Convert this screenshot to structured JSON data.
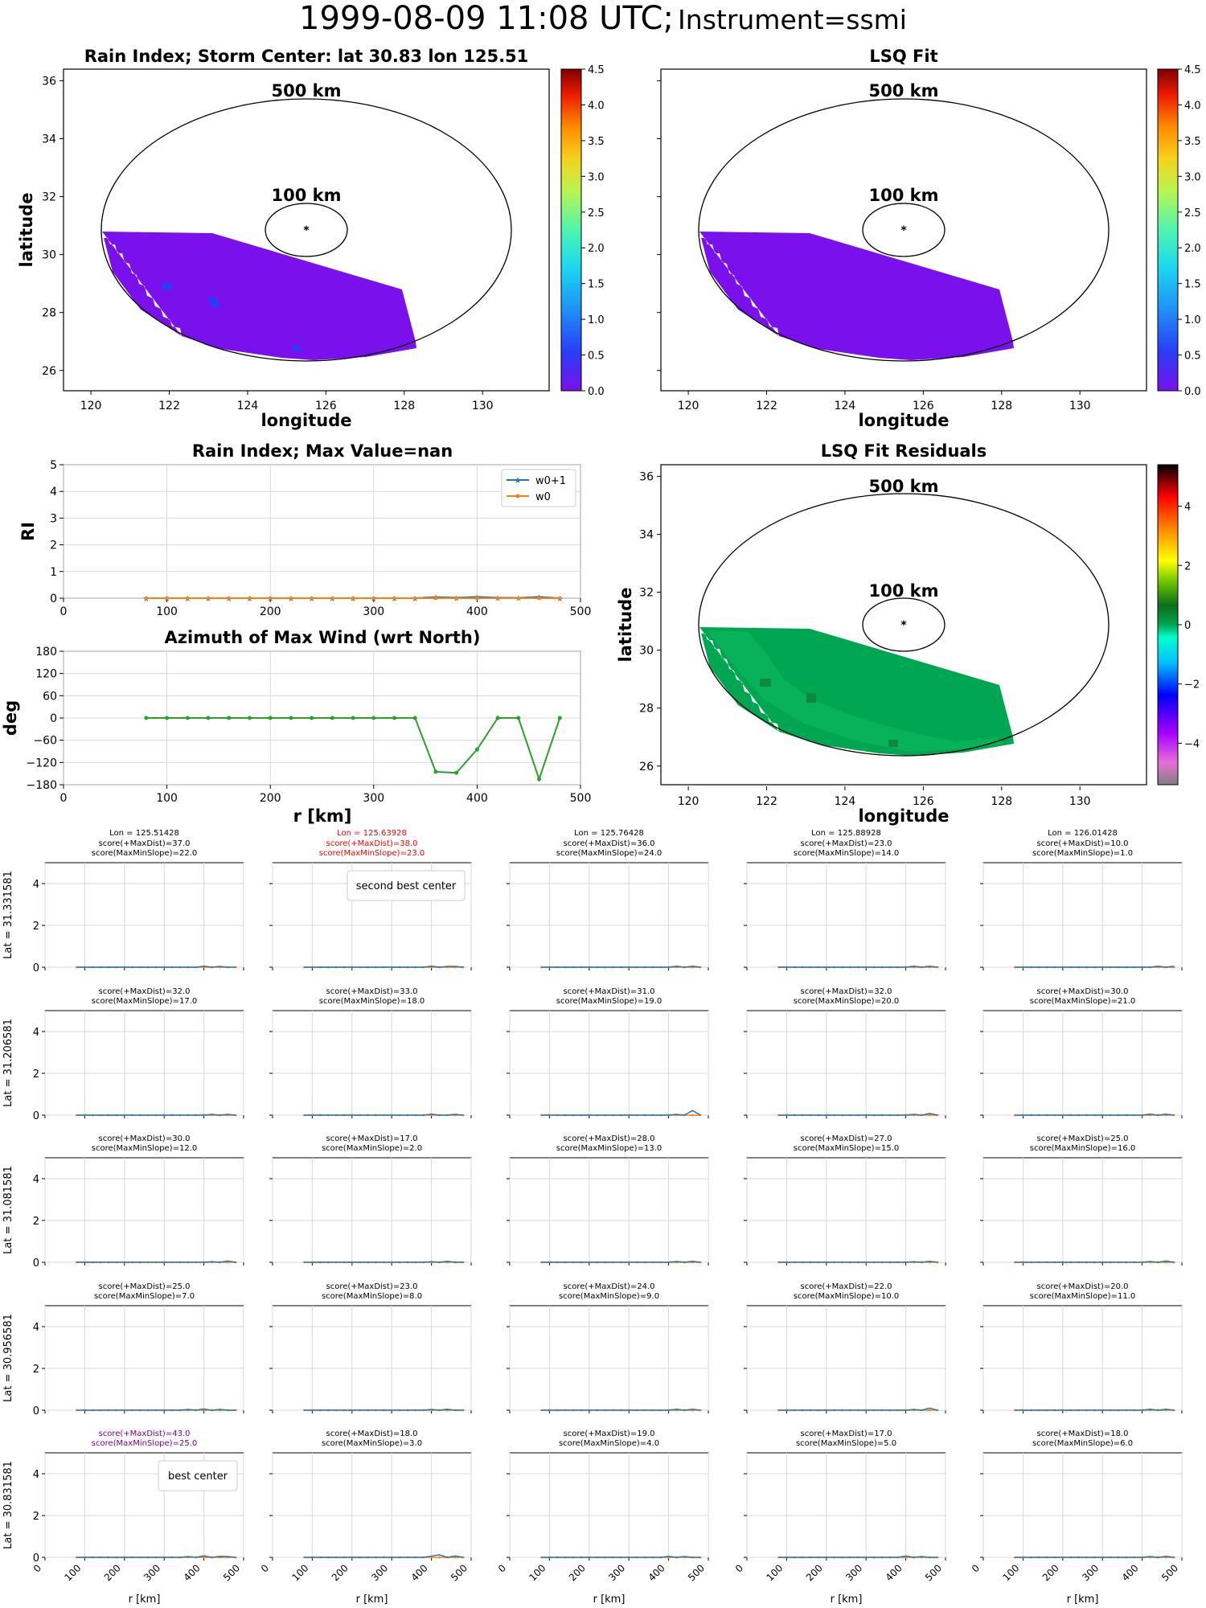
{
  "header": {
    "datetime": "1999-08-09 11:08 UTC;",
    "instrument": "Instrument=ssmi"
  },
  "colors": {
    "rain_fill": "#7a10ec",
    "residual_fill": "#00a651",
    "residual_dark": "#0f8a3a",
    "series_w0p1": "#1f77b4",
    "series_w0": "#ff7f0e",
    "azimuth_line": "#2ca02c",
    "second_best": "#ff0000",
    "best": "#800080"
  },
  "rain_index_map": {
    "title": "Rain Index; Storm Center: lat 30.83 lon 125.51",
    "xlabel": "longitude",
    "ylabel": "latitude",
    "ring_labels": [
      "500 km",
      "100 km"
    ],
    "xticks": [
      "120",
      "122",
      "124",
      "126",
      "128",
      "130"
    ],
    "yticks": [
      "26",
      "28",
      "30",
      "32",
      "34",
      "36"
    ],
    "colorbar_ticks": [
      "0.0",
      "0.5",
      "1.0",
      "1.5",
      "2.0",
      "2.5",
      "3.0",
      "3.5",
      "4.0",
      "4.5"
    ]
  },
  "lsq_fit_map": {
    "title": "LSQ Fit",
    "xlabel": "longitude",
    "ring_labels": [
      "500 km",
      "100 km"
    ],
    "xticks": [
      "120",
      "122",
      "124",
      "126",
      "128",
      "130"
    ],
    "colorbar_ticks": [
      "0.0",
      "0.5",
      "1.0",
      "1.5",
      "2.0",
      "2.5",
      "3.0",
      "3.5",
      "4.0",
      "4.5"
    ]
  },
  "residuals_map": {
    "title": "LSQ Fit Residuals",
    "xlabel": "longitude",
    "ylabel": "latitude",
    "ring_labels": [
      "500 km",
      "100 km"
    ],
    "xticks": [
      "120",
      "122",
      "124",
      "126",
      "128",
      "130"
    ],
    "yticks": [
      "26",
      "28",
      "30",
      "32",
      "34",
      "36"
    ],
    "colorbar_ticks": [
      "4",
      "2",
      "0",
      "−2",
      "−4"
    ]
  },
  "chart_data": [
    {
      "type": "line",
      "title": "Rain Index; Max Value=nan",
      "xlabel": "",
      "ylabel": "RI",
      "xlim": [
        0,
        500
      ],
      "ylim": [
        0,
        5
      ],
      "xticks": [
        "0",
        "100",
        "200",
        "300",
        "400",
        "500"
      ],
      "yticks": [
        "0",
        "1",
        "2",
        "3",
        "4",
        "5"
      ],
      "grid": true,
      "legend_position": "top-right",
      "x": [
        80,
        100,
        120,
        140,
        160,
        180,
        200,
        220,
        240,
        260,
        280,
        300,
        320,
        340,
        360,
        380,
        400,
        420,
        440,
        460,
        480
      ],
      "series": [
        {
          "name": "w0+1",
          "values": [
            0,
            0,
            0,
            0,
            0,
            0,
            0,
            0,
            0,
            0,
            0,
            0,
            0,
            0,
            0.04,
            0.02,
            0.05,
            0.02,
            0.01,
            0.05,
            0
          ]
        },
        {
          "name": "w0",
          "values": [
            0,
            0,
            0,
            0,
            0,
            0,
            0,
            0,
            0,
            0,
            0,
            0,
            0,
            0,
            0,
            0,
            0,
            0,
            0,
            0,
            0
          ]
        }
      ]
    },
    {
      "type": "line",
      "title": "Azimuth of Max Wind (wrt North)",
      "xlabel": "r [km]",
      "ylabel": "deg",
      "xlim": [
        0,
        500
      ],
      "ylim": [
        -180,
        180
      ],
      "xticks": [
        "0",
        "100",
        "200",
        "300",
        "400",
        "500"
      ],
      "yticks": [
        "180",
        "120",
        "60",
        "0",
        "−60",
        "−120",
        "−180"
      ],
      "grid": true,
      "x": [
        80,
        100,
        120,
        140,
        160,
        180,
        200,
        220,
        240,
        260,
        280,
        300,
        320,
        340,
        360,
        380,
        400,
        420,
        440,
        460,
        480
      ],
      "series": [
        {
          "values": [
            0,
            0,
            0,
            0,
            0,
            0,
            0,
            0,
            0,
            0,
            0,
            0,
            0,
            0,
            -145,
            -148,
            -85,
            0,
            0,
            -165,
            0
          ]
        }
      ]
    },
    {
      "type": "line",
      "title": "score grid",
      "xlabel": "r [km]",
      "xlim": [
        0,
        500
      ],
      "ylim": [
        0,
        5
      ],
      "xticks": [
        "0",
        "100",
        "200",
        "300",
        "400",
        "500"
      ],
      "yticks": [
        "0",
        "2",
        "4"
      ],
      "grid": true,
      "column_lons": [
        "Lon = 125.51428",
        "Lon = 125.63928",
        "Lon = 125.76428",
        "Lon = 125.88928",
        "Lon = 126.01428"
      ],
      "row_lats": [
        "Lat = 31.331581",
        "Lat = 31.206581",
        "Lat = 31.081581",
        "Lat = 30.956581",
        "Lat = 30.831581"
      ],
      "x": [
        80,
        100,
        120,
        140,
        160,
        180,
        200,
        220,
        240,
        260,
        280,
        300,
        320,
        340,
        360,
        380,
        400,
        420,
        440,
        460,
        480
      ],
      "panels": [
        {
          "score_maxdist": "score(+MaxDist)=37.0",
          "score_slope": "score(MaxMinSlope)=22.0",
          "w0p1": [
            0,
            0,
            0,
            0,
            0,
            0,
            0,
            0,
            0,
            0,
            0,
            0,
            0,
            0,
            0,
            0,
            0.05,
            0,
            0.04,
            0,
            0
          ]
        },
        {
          "score_maxdist": "score(+MaxDist)=38.0",
          "score_slope": "score(MaxMinSlope)=23.0",
          "highlight": "second_best",
          "legend": "second best center",
          "w0p1": [
            0,
            0,
            0,
            0,
            0,
            0,
            0,
            0,
            0,
            0,
            0,
            0,
            0,
            0,
            0,
            0,
            0.05,
            0,
            0.04,
            0.04,
            0
          ]
        },
        {
          "score_maxdist": "score(+MaxDist)=36.0",
          "score_slope": "score(MaxMinSlope)=24.0",
          "w0p1": [
            0,
            0,
            0,
            0,
            0,
            0,
            0,
            0,
            0,
            0,
            0,
            0,
            0,
            0,
            0,
            0,
            0,
            0.05,
            0,
            0.05,
            0
          ]
        },
        {
          "score_maxdist": "score(+MaxDist)=23.0",
          "score_slope": "score(MaxMinSlope)=14.0",
          "w0p1": [
            0,
            0,
            0,
            0,
            0,
            0,
            0,
            0,
            0,
            0,
            0,
            0,
            0,
            0,
            0,
            0,
            0,
            0.05,
            0,
            0.05,
            0
          ]
        },
        {
          "score_maxdist": "score(+MaxDist)=10.0",
          "score_slope": "score(MaxMinSlope)=1.0",
          "w0p1": [
            0,
            0,
            0,
            0,
            0,
            0,
            0,
            0,
            0,
            0,
            0,
            0,
            0,
            0,
            0,
            0,
            0,
            0,
            0.05,
            0,
            0.05
          ]
        },
        {
          "score_maxdist": "score(+MaxDist)=32.0",
          "score_slope": "score(MaxMinSlope)=17.0",
          "w0p1": [
            0,
            0,
            0,
            0,
            0,
            0,
            0,
            0,
            0,
            0,
            0,
            0,
            0,
            0,
            0,
            0,
            0,
            0.04,
            0,
            0.04,
            0
          ]
        },
        {
          "score_maxdist": "score(+MaxDist)=33.0",
          "score_slope": "score(MaxMinSlope)=18.0",
          "w0p1": [
            0,
            0,
            0,
            0,
            0,
            0,
            0,
            0,
            0,
            0,
            0,
            0,
            0,
            0,
            0,
            0,
            0.05,
            0,
            0,
            0.04,
            0
          ]
        },
        {
          "score_maxdist": "score(+MaxDist)=31.0",
          "score_slope": "score(MaxMinSlope)=19.0",
          "w0p1": [
            0,
            0,
            0,
            0,
            0,
            0,
            0,
            0,
            0,
            0,
            0,
            0,
            0,
            0,
            0,
            0,
            0,
            0.04,
            0,
            0.22,
            0
          ]
        },
        {
          "score_maxdist": "score(+MaxDist)=32.0",
          "score_slope": "score(MaxMinSlope)=20.0",
          "w0p1": [
            0,
            0,
            0,
            0,
            0,
            0,
            0,
            0,
            0,
            0,
            0,
            0,
            0,
            0,
            0,
            0,
            0,
            0.04,
            0,
            0.08,
            0
          ]
        },
        {
          "score_maxdist": "score(+MaxDist)=30.0",
          "score_slope": "score(MaxMinSlope)=21.0",
          "w0p1": [
            0,
            0,
            0,
            0,
            0,
            0,
            0,
            0,
            0,
            0,
            0,
            0,
            0,
            0,
            0,
            0,
            0,
            0.05,
            0,
            0.05,
            0
          ]
        },
        {
          "score_maxdist": "score(+MaxDist)=30.0",
          "score_slope": "score(MaxMinSlope)=12.0",
          "w0p1": [
            0,
            0,
            0,
            0,
            0,
            0,
            0,
            0,
            0,
            0,
            0,
            0,
            0,
            0,
            0,
            0,
            0,
            0.03,
            0,
            0.06,
            0
          ]
        },
        {
          "score_maxdist": "score(+MaxDist)=17.0",
          "score_slope": "score(MaxMinSlope)=2.0",
          "w0p1": [
            0,
            0,
            0,
            0,
            0,
            0,
            0,
            0,
            0,
            0,
            0,
            0,
            0,
            0,
            0,
            0,
            0.03,
            0,
            0.05,
            0,
            0
          ]
        },
        {
          "score_maxdist": "score(+MaxDist)=28.0",
          "score_slope": "score(MaxMinSlope)=13.0",
          "w0p1": [
            0,
            0,
            0,
            0,
            0,
            0,
            0,
            0,
            0,
            0,
            0,
            0,
            0,
            0,
            0,
            0,
            0,
            0.04,
            0,
            0.05,
            0
          ]
        },
        {
          "score_maxdist": "score(+MaxDist)=27.0",
          "score_slope": "score(MaxMinSlope)=15.0",
          "w0p1": [
            0,
            0,
            0,
            0,
            0,
            0,
            0,
            0,
            0,
            0,
            0,
            0,
            0,
            0,
            0,
            0,
            0,
            0.03,
            0,
            0.05,
            0
          ]
        },
        {
          "score_maxdist": "score(+MaxDist)=25.0",
          "score_slope": "score(MaxMinSlope)=16.0",
          "w0p1": [
            0,
            0,
            0,
            0,
            0,
            0,
            0,
            0,
            0,
            0,
            0,
            0,
            0,
            0,
            0,
            0,
            0,
            0.04,
            0,
            0.06,
            0
          ]
        },
        {
          "score_maxdist": "score(+MaxDist)=25.0",
          "score_slope": "score(MaxMinSlope)=7.0",
          "w0p1": [
            0,
            0,
            0,
            0,
            0,
            0,
            0,
            0,
            0,
            0,
            0,
            0,
            0,
            0,
            0.04,
            0,
            0.06,
            0,
            0.04,
            0,
            0
          ]
        },
        {
          "score_maxdist": "score(+MaxDist)=23.0",
          "score_slope": "score(MaxMinSlope)=8.0",
          "w0p1": [
            0,
            0,
            0,
            0,
            0,
            0,
            0,
            0,
            0,
            0,
            0,
            0,
            0,
            0,
            0,
            0,
            0.04,
            0,
            0.05,
            0,
            0
          ]
        },
        {
          "score_maxdist": "score(+MaxDist)=24.0",
          "score_slope": "score(MaxMinSlope)=9.0",
          "w0p1": [
            0,
            0,
            0,
            0,
            0,
            0,
            0,
            0,
            0,
            0,
            0,
            0,
            0,
            0,
            0,
            0,
            0,
            0.05,
            0,
            0.05,
            0
          ]
        },
        {
          "score_maxdist": "score(+MaxDist)=22.0",
          "score_slope": "score(MaxMinSlope)=10.0",
          "w0p1": [
            0,
            0,
            0,
            0,
            0,
            0,
            0,
            0,
            0,
            0,
            0,
            0,
            0,
            0,
            0,
            0,
            0,
            0.04,
            0,
            0.1,
            0
          ]
        },
        {
          "score_maxdist": "score(+MaxDist)=20.0",
          "score_slope": "score(MaxMinSlope)=11.0",
          "w0p1": [
            0,
            0,
            0,
            0,
            0,
            0,
            0,
            0,
            0,
            0,
            0,
            0,
            0,
            0,
            0,
            0,
            0,
            0.05,
            0,
            0.05,
            0
          ]
        },
        {
          "score_maxdist": "score(+MaxDist)=43.0",
          "score_slope": "score(MaxMinSlope)=25.0",
          "highlight": "best",
          "legend": "best center",
          "w0p1": [
            0,
            0,
            0,
            0,
            0,
            0,
            0,
            0,
            0,
            0,
            0,
            0,
            0,
            0,
            0.04,
            0,
            0.07,
            0,
            0.05,
            0.04,
            0
          ]
        },
        {
          "score_maxdist": "score(+MaxDist)=18.0",
          "score_slope": "score(MaxMinSlope)=3.0",
          "w0p1": [
            0,
            0,
            0,
            0,
            0,
            0,
            0,
            0,
            0,
            0,
            0,
            0,
            0,
            0,
            0,
            0,
            0.06,
            0.12,
            0,
            0.06,
            0
          ]
        },
        {
          "score_maxdist": "score(+MaxDist)=19.0",
          "score_slope": "score(MaxMinSlope)=4.0",
          "w0p1": [
            0,
            0,
            0,
            0,
            0,
            0,
            0,
            0,
            0,
            0,
            0,
            0,
            0,
            0,
            0,
            0,
            0.05,
            0,
            0.04,
            0,
            0
          ]
        },
        {
          "score_maxdist": "score(+MaxDist)=17.0",
          "score_slope": "score(MaxMinSlope)=5.0",
          "w0p1": [
            0,
            0,
            0,
            0,
            0,
            0,
            0,
            0,
            0,
            0,
            0,
            0,
            0,
            0,
            0,
            0,
            0.06,
            0,
            0.04,
            0,
            0
          ]
        },
        {
          "score_maxdist": "score(+MaxDist)=18.0",
          "score_slope": "score(MaxMinSlope)=6.0",
          "w0p1": [
            0,
            0,
            0,
            0,
            0,
            0,
            0,
            0,
            0,
            0,
            0,
            0,
            0,
            0,
            0,
            0,
            0,
            0.04,
            0,
            0.05,
            0
          ]
        }
      ]
    }
  ]
}
